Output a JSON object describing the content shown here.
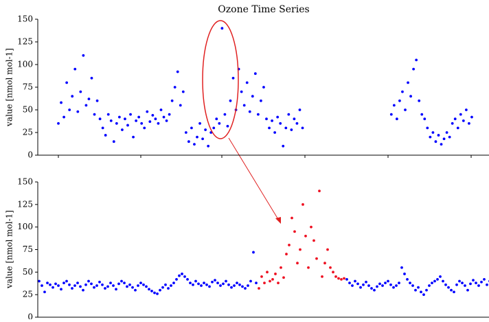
{
  "chart_data": [
    {
      "type": "scatter",
      "title": "Ozone Time Series",
      "ylabel": "value [nmol mol-1]",
      "ylim": [
        0,
        150
      ],
      "yticks": [
        0,
        25,
        50,
        75,
        100,
        125,
        150
      ],
      "series": [
        {
          "color": "#0000ff",
          "values": [
            35,
            58,
            42,
            80,
            50,
            65,
            95,
            48,
            70,
            110,
            55,
            62,
            85,
            45,
            60,
            40,
            30,
            22,
            45,
            38,
            15,
            35,
            42,
            28,
            40,
            33,
            45,
            20,
            38,
            42,
            35,
            30,
            48,
            37,
            44,
            40,
            35,
            50,
            42,
            38,
            45,
            60,
            75,
            92,
            55,
            70,
            25,
            15,
            30,
            12,
            20,
            35,
            18,
            28,
            10,
            25,
            30,
            40,
            35,
            140,
            45,
            32,
            60,
            85,
            50,
            95,
            70,
            55,
            80,
            48,
            65,
            90,
            45,
            60,
            75,
            40,
            30,
            38,
            25,
            42,
            35,
            10,
            30,
            45,
            28,
            40,
            35,
            50,
            30,
            null,
            null,
            null,
            null,
            null,
            null,
            null,
            null,
            null,
            null,
            null,
            null,
            null,
            null,
            null,
            null,
            null,
            null,
            null,
            null,
            null,
            null,
            null,
            null,
            null,
            null,
            null,
            null,
            null,
            null,
            null,
            45,
            55,
            40,
            60,
            70,
            50,
            80,
            65,
            95,
            105,
            60,
            45,
            40,
            30,
            20,
            25,
            15,
            22,
            12,
            18,
            25,
            20,
            35,
            40,
            30,
            45,
            38,
            50,
            35,
            42
          ]
        }
      ]
    },
    {
      "type": "scatter",
      "ylabel": "value [nmol mol-1]",
      "ylim": [
        0,
        150
      ],
      "yticks": [
        0,
        25,
        50,
        75,
        100,
        125,
        150
      ],
      "series": [
        {
          "color": "#0000ff",
          "values": [
            40,
            35,
            28,
            38,
            36,
            33,
            37,
            35,
            31,
            38,
            40,
            36,
            32,
            35,
            38,
            34,
            30,
            36,
            40,
            37,
            33,
            35,
            39,
            36,
            32,
            34,
            38,
            35,
            31,
            37,
            40,
            38,
            34,
            36,
            33,
            30,
            35,
            38,
            36,
            34,
            31,
            29,
            27,
            26,
            30,
            33,
            36,
            32,
            35,
            38,
            42,
            46,
            48,
            45,
            42,
            38,
            36,
            40,
            37,
            35,
            38,
            36,
            34,
            39,
            41,
            38,
            35,
            37,
            40,
            36,
            33,
            35,
            38,
            36,
            34,
            32,
            35,
            40,
            72,
            38,
            null,
            null,
            null,
            null,
            null,
            null,
            null,
            null,
            null,
            null,
            null,
            null,
            null,
            null,
            null,
            null,
            null,
            null,
            null,
            null,
            null,
            null,
            null,
            null,
            null,
            null,
            null,
            null,
            null,
            null,
            null,
            null,
            42,
            38,
            35,
            40,
            37,
            33,
            36,
            39,
            35,
            32,
            30,
            34,
            37,
            35,
            38,
            40,
            36,
            33,
            35,
            38,
            55,
            48,
            42,
            38,
            35,
            30,
            33,
            28,
            25,
            30,
            35,
            38,
            40,
            42,
            45,
            40,
            36,
            33,
            30,
            28,
            36,
            40,
            38,
            35,
            30,
            37,
            41,
            38,
            35,
            39,
            42,
            36,
            40
          ]
        },
        {
          "color": "#ee1122",
          "values": [
            null,
            null,
            null,
            null,
            null,
            null,
            null,
            null,
            null,
            null,
            null,
            null,
            null,
            null,
            null,
            null,
            null,
            null,
            null,
            null,
            null,
            null,
            null,
            null,
            null,
            null,
            null,
            null,
            null,
            null,
            null,
            null,
            null,
            null,
            null,
            null,
            null,
            null,
            null,
            null,
            null,
            null,
            null,
            null,
            null,
            null,
            null,
            null,
            null,
            null,
            null,
            null,
            null,
            null,
            null,
            null,
            null,
            null,
            null,
            null,
            null,
            null,
            null,
            null,
            null,
            null,
            null,
            null,
            null,
            null,
            null,
            null,
            null,
            null,
            null,
            null,
            null,
            null,
            null,
            null,
            32,
            45,
            38,
            50,
            40,
            42,
            48,
            38,
            55,
            44,
            70,
            80,
            110,
            95,
            60,
            75,
            125,
            90,
            55,
            100,
            85,
            65,
            140,
            45,
            60,
            75,
            55,
            50,
            45,
            43,
            42,
            43,
            null,
            null,
            null,
            null,
            null,
            null,
            null,
            null,
            null,
            null,
            null,
            null,
            null,
            null,
            null,
            null,
            null,
            null,
            null,
            null,
            null,
            null,
            null,
            null,
            null,
            null,
            null,
            null,
            null,
            null,
            null,
            null,
            null,
            null,
            null,
            null,
            null,
            null,
            null,
            null,
            null,
            null,
            null,
            null,
            null,
            null,
            null
          ]
        }
      ]
    }
  ]
}
